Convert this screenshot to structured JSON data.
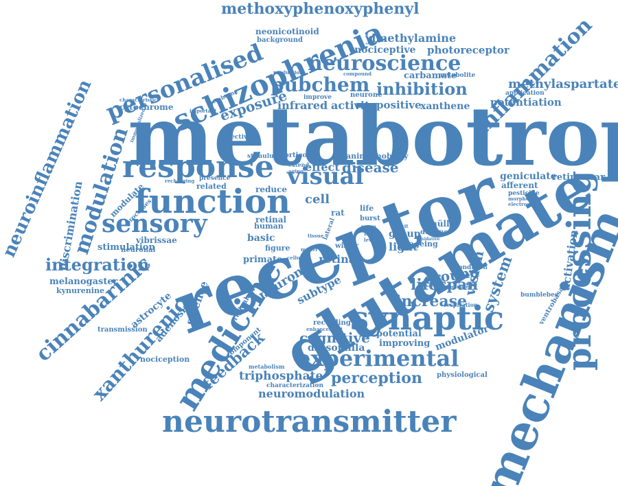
{
  "color": "#4a83b9",
  "words": [
    "metabotropic",
    "receptor",
    "glutamate",
    "mechanism",
    "neurotransmitter",
    "processing",
    "synaptic",
    "function",
    "response",
    "medicine",
    "schizophrenia",
    "sensory",
    "modulation",
    "neuroinflammation",
    "inflammation",
    "personalised",
    "methoxyphenoxyphenyl",
    "neuroscience",
    "pubchem",
    "experimental",
    "cinnabarinic",
    "xanthurenic",
    "visual",
    "integration",
    "inhibition",
    "methylaspartate",
    "perception",
    "neuromodulation",
    "triphosphate",
    "feedback",
    "cognitive",
    "increase",
    "lifespan",
    "ground",
    "system",
    "vision",
    "activation",
    "discrimination",
    "exposure",
    "cytochrome",
    "infrared",
    "activity",
    "positive",
    "xanthene",
    "potentiation",
    "ylmethylamine",
    "nociceptive",
    "photoreceptor",
    "neonicotinoid",
    "background",
    "carbamate",
    "metabolite",
    "retinanear",
    "geniculate",
    "afferent",
    "pesticide",
    "müller",
    "disease",
    "effect",
    "cell",
    "retina",
    "neuron",
    "subtype",
    "science",
    "astrocyte",
    "adenosine",
    "kynurenine",
    "melanogaster",
    "stimulation",
    "vibrissae",
    "neuronal",
    "transmission",
    "nociception",
    "component",
    "drosophila",
    "potential",
    "improving",
    "modulator",
    "physiological",
    "bumblebee",
    "ventrobasal",
    "ageing",
    "decline",
    "group",
    "light",
    "primate",
    "basic",
    "figure",
    "reticular",
    "retinal",
    "human",
    "reduce",
    "related",
    "modulate",
    "processes",
    "selective",
    "stimulus",
    "cortico",
    "mobility",
    "animal",
    "application",
    "characteristic",
    "membrane",
    "neurone",
    "improve",
    "compound",
    "production",
    "important",
    "immortalized",
    "recharging",
    "presence",
    "extend",
    "aging",
    "recording",
    "enhancement",
    "characterization",
    "metabolism",
    "condition",
    "morphologic",
    "electrogenic",
    "respiration",
    "modulated",
    "burst",
    "life",
    "rat",
    "wave",
    "firing",
    "level",
    "deficit",
    "wistar",
    "lateral",
    "oxidative",
    "cellular",
    "tissue",
    "model"
  ]
}
